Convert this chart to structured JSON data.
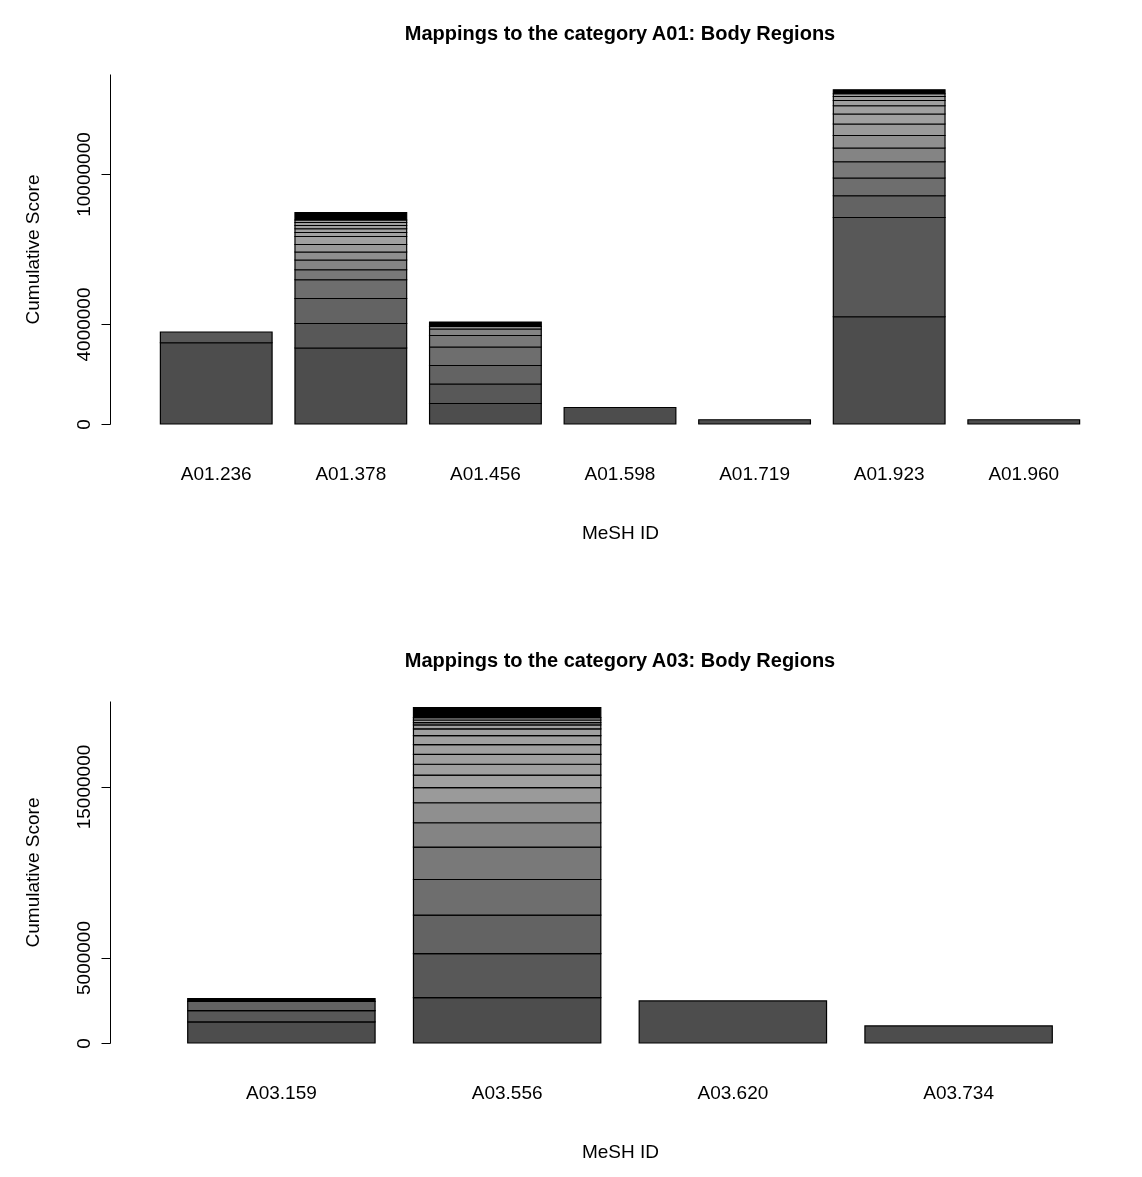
{
  "chart_data": [
    {
      "type": "bar",
      "title": "Mappings to the category A01: Body Regions",
      "xlabel": "MeSH ID",
      "ylabel": "Cumulative Score",
      "stacked": true,
      "categories": [
        "A01.236",
        "A01.378",
        "A01.456",
        "A01.598",
        "A01.719",
        "A01.923",
        "A01.960"
      ],
      "ylim": [
        0,
        14000000
      ],
      "yticks": [
        0,
        4000000,
        10000000
      ],
      "series": [
        {
          "color": "#4d4d4d",
          "values": [
            3250000,
            3040000,
            820000,
            660000,
            170000,
            4290000,
            170000
          ]
        },
        {
          "color": "#585858",
          "values": [
            430000,
            980000,
            780000,
            null,
            null,
            3970000,
            null
          ]
        },
        {
          "color": "#636363",
          "values": [
            null,
            1000000,
            740000,
            null,
            null,
            870000,
            null
          ]
        },
        {
          "color": "#6e6e6e",
          "values": [
            null,
            750000,
            740000,
            null,
            null,
            710000,
            null
          ]
        },
        {
          "color": "#797979",
          "values": [
            null,
            400000,
            460000,
            null,
            null,
            650000,
            null
          ]
        },
        {
          "color": "#848484",
          "values": [
            null,
            390000,
            260000,
            null,
            null,
            550000,
            null
          ]
        },
        {
          "color": "#8f8f8f",
          "values": [
            null,
            320000,
            100000,
            null,
            null,
            500000,
            null
          ]
        },
        {
          "colors": [
            null,
            "#9a9a9a",
            "#000000",
            null,
            null,
            "#9a9a9a",
            null
          ],
          "values": [
            null,
            300000,
            180000,
            null,
            null,
            460000,
            null
          ]
        },
        {
          "color": "#a0a0a0",
          "values": [
            null,
            320000,
            null,
            null,
            null,
            400000,
            null
          ]
        },
        {
          "color": "#a0a0a0",
          "values": [
            null,
            160000,
            null,
            null,
            null,
            330000,
            null
          ]
        },
        {
          "color": "#a0a0a0",
          "values": [
            null,
            150000,
            null,
            null,
            null,
            210000,
            null
          ]
        },
        {
          "color": "#a0a0a0",
          "values": [
            null,
            130000,
            null,
            null,
            null,
            160000,
            null
          ]
        },
        {
          "color": "#a0a0a0",
          "values": [
            null,
            120000,
            null,
            null,
            null,
            110000,
            null
          ]
        },
        {
          "colors": [
            null,
            "#a0a0a0",
            null,
            null,
            null,
            "#000000",
            null
          ],
          "values": [
            null,
            100000,
            null,
            null,
            null,
            160000,
            null
          ]
        },
        {
          "color": "#000000",
          "values": [
            null,
            300000,
            null,
            null,
            null,
            null,
            null
          ]
        }
      ]
    },
    {
      "type": "bar",
      "title": "Mappings to the category A03: Body Regions",
      "xlabel": "MeSH ID",
      "ylabel": "Cumulative Score",
      "stacked": true,
      "categories": [
        "A03.159",
        "A03.556",
        "A03.620",
        "A03.734"
      ],
      "ylim": [
        0,
        20000000
      ],
      "yticks": [
        0,
        5000000,
        15000000
      ],
      "series": [
        {
          "color": "#4d4d4d",
          "values": [
            1230000,
            2650000,
            2460000,
            1000000
          ]
        },
        {
          "color": "#585858",
          "values": [
            660000,
            2580000,
            null,
            null
          ]
        },
        {
          "color": "#636363",
          "values": [
            550000,
            2250000,
            null,
            null
          ]
        },
        {
          "colors": [
            "#000000",
            "#6e6e6e",
            null,
            null
          ],
          "values": [
            150000,
            2080000,
            null,
            null
          ]
        },
        {
          "color": "#797979",
          "values": [
            null,
            1900000,
            null,
            null
          ]
        },
        {
          "color": "#848484",
          "values": [
            null,
            1420000,
            null,
            null
          ]
        },
        {
          "color": "#8f8f8f",
          "values": [
            null,
            1170000,
            null,
            null
          ]
        },
        {
          "color": "#9a9a9a",
          "values": [
            null,
            880000,
            null,
            null
          ]
        },
        {
          "color": "#a0a0a0",
          "values": [
            null,
            740000,
            null,
            null
          ]
        },
        {
          "color": "#a0a0a0",
          "values": [
            null,
            630000,
            null,
            null
          ]
        },
        {
          "color": "#a0a0a0",
          "values": [
            null,
            580000,
            null,
            null
          ]
        },
        {
          "color": "#a0a0a0",
          "values": [
            null,
            570000,
            null,
            null
          ]
        },
        {
          "color": "#a0a0a0",
          "values": [
            null,
            520000,
            null,
            null
          ]
        },
        {
          "color": "#a0a0a0",
          "values": [
            null,
            400000,
            null,
            null
          ]
        },
        {
          "color": "#a0a0a0",
          "values": [
            null,
            230000,
            null,
            null
          ]
        },
        {
          "color": "#a0a0a0",
          "values": [
            null,
            140000,
            null,
            null
          ]
        },
        {
          "color": "#a0a0a0",
          "values": [
            null,
            150000,
            null,
            null
          ]
        },
        {
          "color": "#a0a0a0",
          "values": [
            null,
            140000,
            null,
            null
          ]
        },
        {
          "color": "#000000",
          "values": [
            null,
            580000,
            null,
            null
          ]
        }
      ]
    }
  ]
}
